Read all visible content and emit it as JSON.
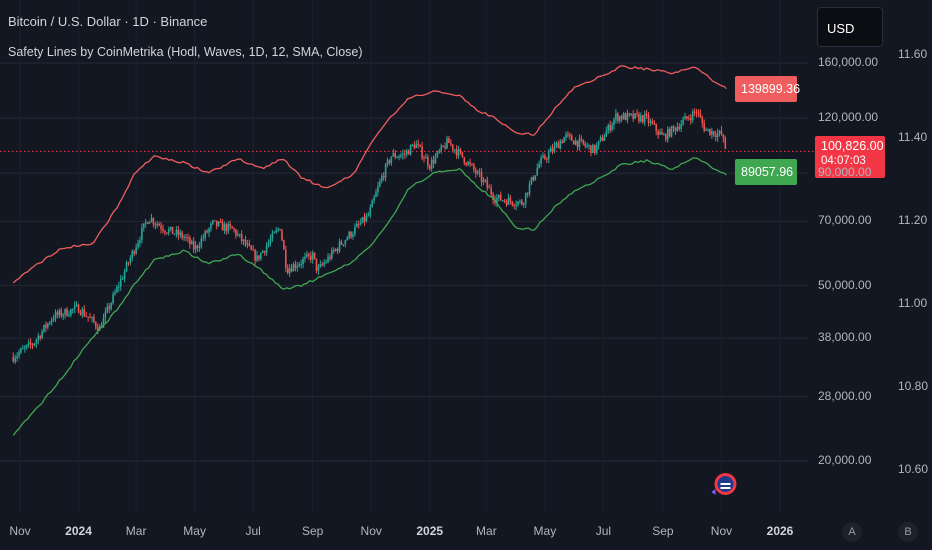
{
  "header": {
    "title": "Bitcoin / U.S. Dollar · 1D · Binance",
    "indicator": "Safety Lines by CoinMetrika (Hodl, Waves, 1D, 12, SMA, Close)"
  },
  "currency_label": "USD",
  "tags": {
    "upper": "139899.36",
    "lower": "89057.96",
    "last_price": "100,826.00",
    "countdown": "04:07:03"
  },
  "scale_buttons": {
    "auto": "A",
    "log": "B"
  },
  "colors": {
    "background": "#131722",
    "grid": "#262a35",
    "upper_line": "#f05d5e",
    "lower_line": "#3fa750",
    "candle_up": "#26a69a",
    "candle_down": "#ef5350",
    "price_line": "#f23645"
  },
  "chart_data": {
    "type": "candlestick",
    "title": "Bitcoin / U.S. Dollar · 1D · Binance",
    "log_scale": true,
    "grid": true,
    "x_ticks": [
      "Nov",
      "2024",
      "Mar",
      "May",
      "Jul",
      "Sep",
      "Nov",
      "2025",
      "Mar",
      "May",
      "Jul",
      "Sep",
      "Nov",
      "2026"
    ],
    "x_range": [
      "2023-10-25",
      "2026-02-28"
    ],
    "y_ticks": [
      20000,
      28000,
      38000,
      50000,
      70000,
      90000,
      120000,
      160000
    ],
    "y_tick_labels": [
      "20,000.00",
      "28,000.00",
      "38,000.00",
      "50,000.00",
      "70,000.00",
      "90,000.00",
      "120,000.00",
      "160,000.00"
    ],
    "secondary_y_ticks": [
      10.6,
      10.8,
      11.0,
      11.2,
      11.4,
      11.6
    ],
    "secondary_y_tick_labels": [
      "10.60",
      "10.80",
      "11.00",
      "11.20",
      "11.40",
      "11.60"
    ],
    "ylim": [
      17500,
      190000
    ],
    "last_price": 100826,
    "series": [
      {
        "name": "Price (Close)",
        "x": [
          "2023-10-25",
          "2023-11-15",
          "2023-12-05",
          "2024-01-01",
          "2024-01-23",
          "2024-02-15",
          "2024-03-01",
          "2024-03-14",
          "2024-04-01",
          "2024-04-20",
          "2024-05-01",
          "2024-05-20",
          "2024-06-10",
          "2024-07-05",
          "2024-07-29",
          "2024-08-05",
          "2024-09-01",
          "2024-09-06",
          "2024-10-01",
          "2024-10-29",
          "2024-11-12",
          "2024-11-22",
          "2024-12-05",
          "2024-12-17",
          "2025-01-01",
          "2025-01-20",
          "2025-02-05",
          "2025-02-28",
          "2025-03-10",
          "2025-04-07",
          "2025-04-25",
          "2025-05-22",
          "2025-06-22",
          "2025-07-14",
          "2025-08-14",
          "2025-09-01",
          "2025-10-06",
          "2025-10-15",
          "2025-11-01",
          "2025-11-06"
        ],
        "y": [
          34500,
          37000,
          42500,
          44500,
          40000,
          52000,
          62000,
          71500,
          67000,
          64500,
          60500,
          69000,
          67000,
          57500,
          68000,
          54500,
          58500,
          54000,
          62500,
          72000,
          88000,
          98500,
          99000,
          105000,
          94000,
          106000,
          97500,
          85000,
          79000,
          77000,
          94500,
          109000,
          101500,
          121000,
          120000,
          108500,
          124500,
          113000,
          110000,
          100826
        ]
      },
      {
        "name": "Upper safety line",
        "x": [
          "2023-10-25",
          "2023-11-20",
          "2023-12-15",
          "2024-01-15",
          "2024-02-10",
          "2024-03-01",
          "2024-03-20",
          "2024-04-20",
          "2024-05-15",
          "2024-06-15",
          "2024-07-10",
          "2024-08-01",
          "2024-08-20",
          "2024-09-15",
          "2024-10-15",
          "2024-11-01",
          "2024-11-20",
          "2024-12-10",
          "2025-01-05",
          "2025-02-01",
          "2025-02-20",
          "2025-03-10",
          "2025-04-01",
          "2025-04-20",
          "2025-05-10",
          "2025-06-01",
          "2025-06-25",
          "2025-07-20",
          "2025-08-15",
          "2025-09-10",
          "2025-10-05",
          "2025-10-25",
          "2025-11-06"
        ],
        "y": [
          51000,
          56000,
          61000,
          62000,
          75000,
          91000,
          98000,
          95000,
          90000,
          97000,
          92000,
          97000,
          88000,
          83000,
          90000,
          106000,
          120000,
          133000,
          138000,
          135000,
          125000,
          120000,
          111000,
          110000,
          125000,
          141000,
          148000,
          157000,
          155000,
          152000,
          157000,
          145000,
          139899.36
        ]
      },
      {
        "name": "Lower safety line",
        "x": [
          "2023-10-25",
          "2023-11-20",
          "2023-12-15",
          "2024-01-15",
          "2024-02-10",
          "2024-03-01",
          "2024-03-20",
          "2024-04-20",
          "2024-05-15",
          "2024-06-15",
          "2024-07-10",
          "2024-08-01",
          "2024-08-20",
          "2024-09-15",
          "2024-10-15",
          "2024-11-01",
          "2024-11-20",
          "2024-12-10",
          "2025-01-05",
          "2025-02-01",
          "2025-02-20",
          "2025-03-10",
          "2025-04-01",
          "2025-04-20",
          "2025-05-10",
          "2025-06-01",
          "2025-06-25",
          "2025-07-20",
          "2025-08-15",
          "2025-09-10",
          "2025-10-05",
          "2025-10-25",
          "2025-11-06"
        ],
        "y": [
          23000,
          26500,
          31000,
          38000,
          44000,
          51000,
          57000,
          60000,
          56000,
          59000,
          54000,
          49000,
          50000,
          53000,
          57000,
          62000,
          70000,
          83000,
          90000,
          92000,
          84000,
          78000,
          67500,
          67000,
          75000,
          82000,
          87000,
          94000,
          96000,
          92000,
          98000,
          92000,
          89057.96
        ]
      }
    ]
  }
}
